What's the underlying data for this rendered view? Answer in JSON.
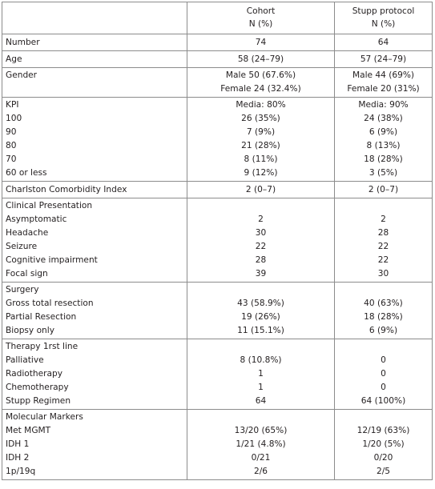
{
  "header": {
    "blank": "",
    "cohort": [
      "Cohort",
      "N (%)"
    ],
    "stupp": [
      "Stupp protocol",
      "N (%)"
    ]
  },
  "rows": [
    {
      "name": "row-number",
      "labels": [
        "Number"
      ],
      "cohort": [
        "74"
      ],
      "stupp": [
        "64"
      ]
    },
    {
      "name": "row-age",
      "labels": [
        "Age"
      ],
      "cohort": [
        "58 (24–79)"
      ],
      "stupp": [
        "57 (24–79)"
      ]
    },
    {
      "name": "row-gender",
      "labels": [
        "Gender",
        ""
      ],
      "cohort": [
        "Male 50 (67.6%)",
        "Female 24 (32.4%)"
      ],
      "stupp": [
        "Male 44 (69%)",
        "Female 20 (31%)"
      ]
    },
    {
      "name": "row-kpi",
      "labels": [
        "KPI",
        "100",
        "90",
        "80",
        "70",
        "60 or less"
      ],
      "cohort": [
        "Media: 80%",
        "26 (35%)",
        "7 (9%)",
        "21 (28%)",
        "8 (11%)",
        "9 (12%)"
      ],
      "stupp": [
        "Media: 90%",
        "24 (38%)",
        "6 (9%)",
        "8 (13%)",
        "18 (28%)",
        "3 (5%)"
      ]
    },
    {
      "name": "row-charlston",
      "labels": [
        "Charlston Comorbidity Index"
      ],
      "cohort": [
        "2 (0–7)"
      ],
      "stupp": [
        "2 (0–7)"
      ]
    },
    {
      "name": "row-clinical-presentation",
      "labels": [
        "Clinical Presentation",
        "Asymptomatic",
        "Headache",
        "Seizure",
        "Cognitive impairment",
        "Focal sign"
      ],
      "cohort": [
        "",
        "2",
        "30",
        "22",
        "28",
        "39"
      ],
      "stupp": [
        "",
        "2",
        "28",
        "22",
        "22",
        "30"
      ]
    },
    {
      "name": "row-surgery",
      "labels": [
        "Surgery",
        "Gross total resection",
        "Partial Resection",
        "Biopsy only"
      ],
      "cohort": [
        "",
        "43 (58.9%)",
        "19 (26%)",
        "11 (15.1%)"
      ],
      "stupp": [
        "",
        "40 (63%)",
        "18 (28%)",
        "6 (9%)"
      ]
    },
    {
      "name": "row-therapy",
      "labels": [
        "Therapy 1rst line",
        "Palliative",
        "Radiotherapy",
        "Chemotherapy",
        "Stupp Regimen"
      ],
      "cohort": [
        "",
        "8 (10.8%)",
        "1",
        "1",
        "64"
      ],
      "stupp": [
        "",
        "0",
        "0",
        "0",
        "64 (100%)"
      ]
    },
    {
      "name": "row-molecular-markers",
      "labels": [
        "Molecular Markers",
        "Met MGMT",
        "IDH 1",
        "IDH 2",
        "1p/19q"
      ],
      "cohort": [
        "",
        "13/20 (65%)",
        "1/21 (4.8%)",
        "0/21",
        "2/6"
      ],
      "stupp": [
        "",
        "12/19 (63%)",
        "1/20 (5%)",
        "0/20",
        "2/5"
      ]
    }
  ]
}
